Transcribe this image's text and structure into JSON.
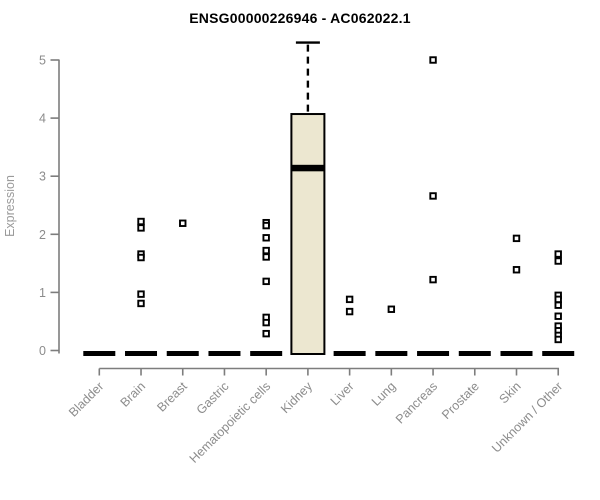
{
  "title": "ENSG00000226946 - AC062022.1",
  "chart_data": {
    "type": "boxplot",
    "title": "ENSG00000226946 - AC062022.1",
    "xlabel": "",
    "ylabel": "Expression",
    "ylim": [
      0,
      5
    ],
    "yticks": [
      0,
      1,
      2,
      3,
      4,
      5
    ],
    "grid": false,
    "legend": "none",
    "categories": [
      "Bladder",
      "Brain",
      "Breast",
      "Gastric",
      "Hematopoietic cells",
      "Kidney",
      "Liver",
      "Lung",
      "Pancreas",
      "Prostate",
      "Skin",
      "Unknown / Other"
    ],
    "boxes": [
      {
        "category": "Bladder",
        "q1": 0,
        "median": 0,
        "q3": 0,
        "whisker_low": 0,
        "whisker_high": 0,
        "outliers": []
      },
      {
        "category": "Brain",
        "q1": 0,
        "median": 0,
        "q3": 0,
        "whisker_low": 0,
        "whisker_high": 0,
        "outliers": [
          2.22,
          2.11,
          1.66,
          1.6,
          0.97,
          0.81
        ]
      },
      {
        "category": "Breast",
        "q1": 0,
        "median": 0,
        "q3": 0,
        "whisker_low": 0,
        "whisker_high": 0,
        "outliers": [
          2.19
        ]
      },
      {
        "category": "Gastric",
        "q1": 0,
        "median": 0,
        "q3": 0,
        "whisker_low": 0,
        "whisker_high": 0,
        "outliers": []
      },
      {
        "category": "Hematopoietic cells",
        "q1": 0,
        "median": 0,
        "q3": 0,
        "whisker_low": 0,
        "whisker_high": 0,
        "outliers": [
          2.2,
          2.15,
          1.94,
          1.72,
          1.61,
          1.19,
          0.57,
          0.48,
          0.29
        ]
      },
      {
        "category": "Kidney",
        "q1": 0,
        "median": 3.14,
        "q3": 4.07,
        "whisker_low": 0,
        "whisker_high": 5.3,
        "outliers": []
      },
      {
        "category": "Liver",
        "q1": 0,
        "median": 0,
        "q3": 0,
        "whisker_low": 0,
        "whisker_high": 0,
        "outliers": [
          0.88,
          0.67
        ]
      },
      {
        "category": "Lung",
        "q1": 0,
        "median": 0,
        "q3": 0,
        "whisker_low": 0,
        "whisker_high": 0,
        "outliers": [
          0.71
        ]
      },
      {
        "category": "Pancreas",
        "q1": 0,
        "median": 0,
        "q3": 0,
        "whisker_low": 0,
        "whisker_high": 0,
        "outliers": [
          5.0,
          2.66,
          1.22
        ]
      },
      {
        "category": "Prostate",
        "q1": 0,
        "median": 0,
        "q3": 0,
        "whisker_low": 0,
        "whisker_high": 0,
        "outliers": []
      },
      {
        "category": "Skin",
        "q1": 0,
        "median": 0,
        "q3": 0,
        "whisker_low": 0,
        "whisker_high": 0,
        "outliers": [
          1.93,
          1.39
        ]
      },
      {
        "category": "Unknown / Other",
        "q1": 0,
        "median": 0,
        "q3": 0,
        "whisker_low": 0,
        "whisker_high": 0,
        "outliers": [
          1.66,
          1.54,
          0.95,
          0.88,
          0.78,
          0.59,
          0.42,
          0.34,
          0.26,
          0.19
        ]
      }
    ],
    "colors": {
      "box_fill": "#ece7d0",
      "box_stroke": "#000000",
      "median": "#000000",
      "outlier": "#000000",
      "outlier_fill": "#ffffff",
      "axis": "#7d7d7d",
      "tick_label": "#8c8c8c",
      "axis_label": "#9a9a9a",
      "title": "#000000",
      "background": "#ffffff"
    }
  }
}
